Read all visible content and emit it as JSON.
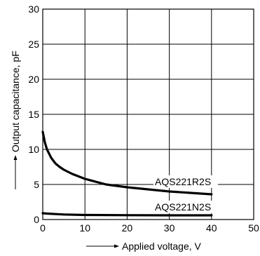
{
  "chart_data": {
    "type": "line",
    "xlabel": "Applied voltage, V",
    "ylabel": "Output capacitance, pF",
    "xlim": [
      0,
      50
    ],
    "ylim": [
      0,
      30
    ],
    "xticks": [
      0,
      10,
      20,
      30,
      40,
      50
    ],
    "yticks": [
      0,
      5,
      10,
      15,
      20,
      25,
      30
    ],
    "grid": true,
    "series": [
      {
        "name": "AQS221R2S",
        "x": [
          0,
          0.5,
          1,
          2,
          3,
          4,
          5,
          7,
          10,
          15,
          20,
          25,
          30,
          35,
          40
        ],
        "y": [
          12.5,
          11,
          10,
          8.8,
          8,
          7.5,
          7.1,
          6.5,
          5.8,
          5.0,
          4.6,
          4.3,
          4.0,
          3.8,
          3.6
        ]
      },
      {
        "name": "AQS221N2S",
        "x": [
          0,
          1,
          3,
          5,
          10,
          20,
          30,
          40
        ],
        "y": [
          0.9,
          0.85,
          0.78,
          0.72,
          0.65,
          0.62,
          0.6,
          0.6
        ]
      }
    ]
  }
}
